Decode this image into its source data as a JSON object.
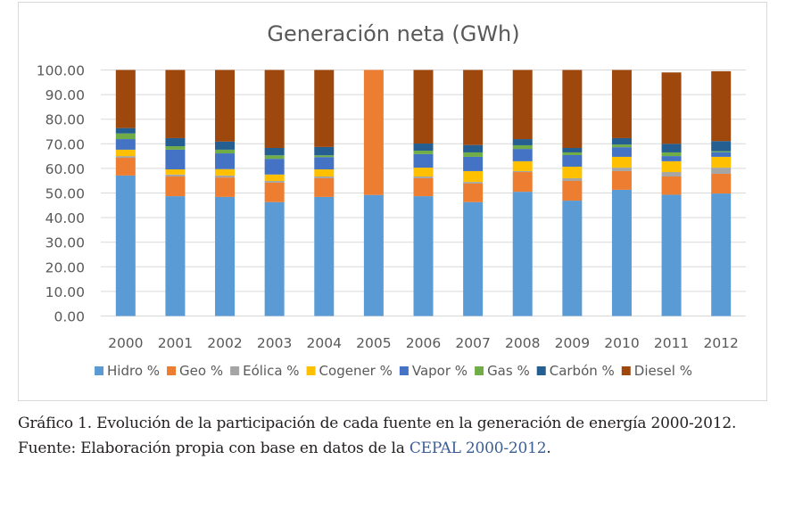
{
  "chart_data": {
    "type": "bar",
    "stacked": true,
    "title": "Generación neta (GWh)",
    "xlabel": "",
    "ylabel": "",
    "ylim": [
      0,
      100
    ],
    "yticks": [
      "0.00",
      "10.00",
      "20.00",
      "30.00",
      "40.00",
      "50.00",
      "60.00",
      "70.00",
      "80.00",
      "90.00",
      "100.00"
    ],
    "ytick_values": [
      0,
      10,
      20,
      30,
      40,
      50,
      60,
      70,
      80,
      90,
      100
    ],
    "grid": true,
    "legend_position": "bottom",
    "categories": [
      "2000",
      "2001",
      "2002",
      "2003",
      "2004",
      "2005",
      "2006",
      "2007",
      "2008",
      "2009",
      "2010",
      "2011",
      "2012"
    ],
    "series": [
      {
        "name": "Hidro %",
        "color": "#5b9bd5",
        "values": [
          57.1,
          48.7,
          48.4,
          46.3,
          48.4,
          49.2,
          48.7,
          46.3,
          50.5,
          46.9,
          51.3,
          49.3,
          49.8
        ]
      },
      {
        "name": "Geo %",
        "color": "#ed7d31",
        "values": [
          7.2,
          8.0,
          7.9,
          7.9,
          7.6,
          50.8,
          7.3,
          7.5,
          8.0,
          8.0,
          7.6,
          7.4,
          8.0
        ]
      },
      {
        "name": "Eólica %",
        "color": "#a5a5a5",
        "values": [
          0.7,
          0.8,
          0.8,
          0.7,
          0.7,
          0.0,
          0.7,
          0.7,
          0.4,
          1.1,
          1.4,
          1.8,
          2.5
        ]
      },
      {
        "name": "Cogener %",
        "color": "#ffc000",
        "values": [
          2.6,
          2.1,
          2.6,
          2.6,
          2.9,
          0.0,
          3.6,
          4.4,
          4.0,
          4.7,
          4.4,
          4.4,
          4.4
        ]
      },
      {
        "name": "Vapor %",
        "color": "#4472c4",
        "values": [
          4.3,
          8.0,
          6.4,
          6.4,
          5.0,
          0.0,
          5.5,
          5.8,
          5.0,
          4.7,
          3.9,
          2.1,
          1.9
        ]
      },
      {
        "name": "Gas %",
        "color": "#70ad47",
        "values": [
          2.3,
          1.4,
          1.5,
          1.4,
          0.7,
          0.0,
          1.4,
          1.8,
          1.5,
          1.1,
          1.1,
          1.5,
          0.4
        ]
      },
      {
        "name": "Carbón %",
        "color": "#255e91",
        "values": [
          2.2,
          3.3,
          3.3,
          3.0,
          3.4,
          0.0,
          2.9,
          3.0,
          2.5,
          1.8,
          2.6,
          3.5,
          4.1
        ]
      },
      {
        "name": "Diesel %",
        "color": "#9e480e",
        "values": [
          23.6,
          27.7,
          29.1,
          31.7,
          31.3,
          0.0,
          29.9,
          30.5,
          28.1,
          31.7,
          27.7,
          29.0,
          28.4
        ]
      }
    ]
  },
  "caption": {
    "line1": "Gráfico 1. Evolución de la participación de cada fuente en la generación de energía 2000-2012.",
    "line2_prefix": "Fuente: Elaboración propia con base en datos de la ",
    "line2_link": "CEPAL 2000-2012",
    "line2_suffix": "."
  }
}
